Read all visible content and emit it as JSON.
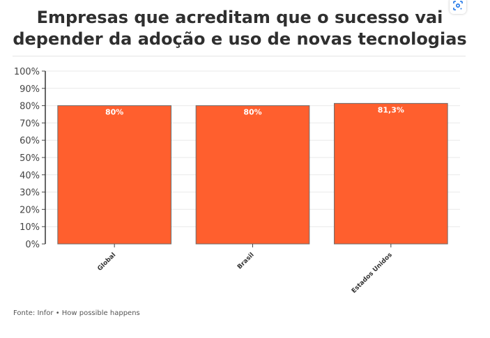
{
  "chart_data": {
    "type": "bar",
    "title": "Empresas que acreditam que o sucesso vai depender da adoção e uso de novas tecnologias",
    "categories": [
      "Global",
      "Brasil",
      "Estados Unidos"
    ],
    "values": [
      80,
      80,
      81.3
    ],
    "data_labels": [
      "80%",
      "80%",
      "81,3%"
    ],
    "y_ticks": [
      "0%",
      "10%",
      "20%",
      "30%",
      "40%",
      "50%",
      "60%",
      "70%",
      "80%",
      "90%",
      "100%"
    ],
    "ylim": [
      0,
      100
    ],
    "xlabel": "",
    "ylabel": "",
    "grid": true,
    "legend": "none",
    "bar_color": "#ff5f2e",
    "bar_edge_color": "#6b6b6b",
    "label_color": "#ffffff",
    "grid_color": "#e9e9e9"
  },
  "source": "Fonte: Infor • How possible happens",
  "icons": {
    "lens": "google-lens-icon"
  }
}
